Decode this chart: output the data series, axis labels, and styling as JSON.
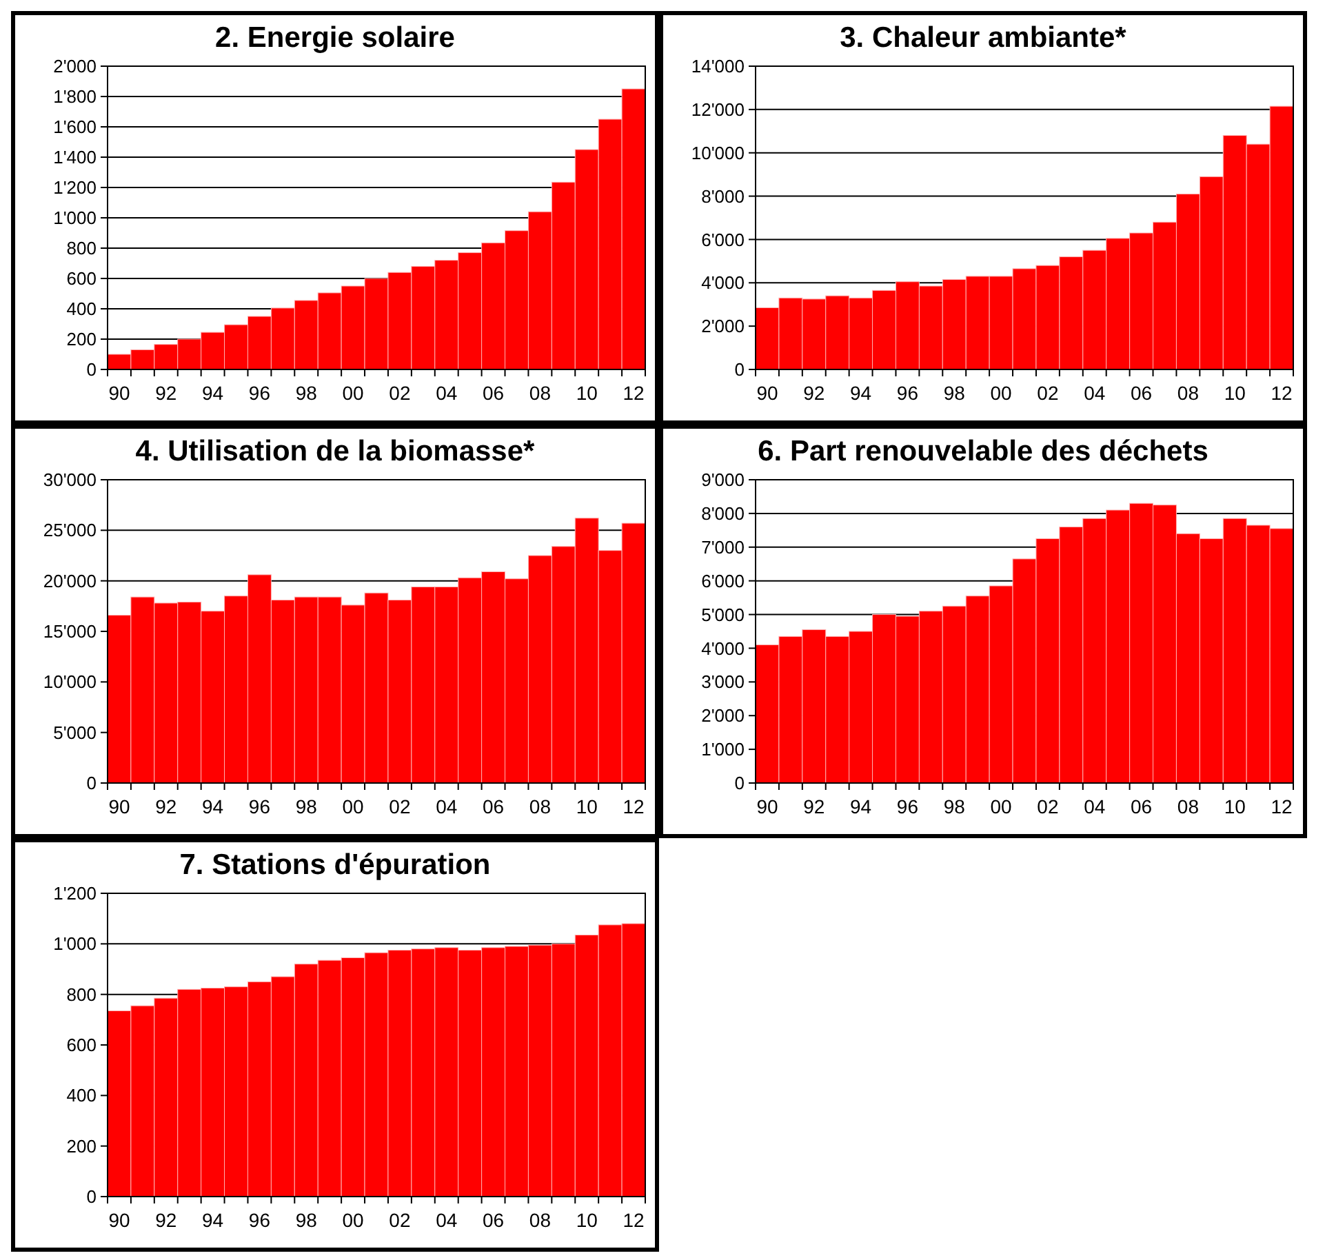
{
  "chart_data": [
    {
      "type": "bar",
      "title": "2. Energie solaire",
      "categories": [
        "90",
        null,
        "92",
        null,
        "94",
        null,
        "96",
        null,
        "98",
        null,
        "00",
        null,
        "02",
        null,
        "04",
        null,
        "06",
        null,
        "08",
        null,
        "10",
        null,
        "12"
      ],
      "values": [
        100,
        130,
        165,
        200,
        245,
        295,
        350,
        405,
        455,
        505,
        550,
        600,
        640,
        680,
        720,
        770,
        835,
        915,
        1040,
        1235,
        1450,
        1650,
        1850
      ],
      "color": "#ff0000",
      "ylim": [
        0,
        2000
      ],
      "yticks": [
        0,
        200,
        400,
        600,
        800,
        {
          "value": 1000,
          "label": "1'000"
        },
        {
          "value": 1200,
          "label": "1'200"
        },
        {
          "value": 1400,
          "label": "1'400"
        },
        {
          "value": 1600,
          "label": "1'600"
        },
        {
          "value": 1800,
          "label": "1'800"
        },
        {
          "value": 2000,
          "label": "2'000"
        }
      ],
      "grid": "y"
    },
    {
      "type": "bar",
      "title": "3. Chaleur ambiante*",
      "categories": [
        "90",
        null,
        "92",
        null,
        "94",
        null,
        "96",
        null,
        "98",
        null,
        "00",
        null,
        "02",
        null,
        "04",
        null,
        "06",
        null,
        "08",
        null,
        "10",
        null,
        "12"
      ],
      "values": [
        2850,
        3300,
        3250,
        3400,
        3300,
        3650,
        4050,
        3850,
        4150,
        4300,
        4300,
        4650,
        4800,
        5200,
        5500,
        6050,
        6300,
        6800,
        8100,
        8900,
        10800,
        10400,
        12150
      ],
      "color": "#ff0000",
      "ylim": [
        0,
        14000
      ],
      "yticks": [
        0,
        {
          "value": 2000,
          "label": "2'000"
        },
        {
          "value": 4000,
          "label": "4'000"
        },
        {
          "value": 6000,
          "label": "6'000"
        },
        {
          "value": 8000,
          "label": "8'000"
        },
        {
          "value": 10000,
          "label": "10'000"
        },
        {
          "value": 12000,
          "label": "12'000"
        },
        {
          "value": 14000,
          "label": "14'000"
        }
      ],
      "grid": "y"
    },
    {
      "type": "bar",
      "title": "4. Utilisation de la biomasse*",
      "categories": [
        "90",
        null,
        "92",
        null,
        "94",
        null,
        "96",
        null,
        "98",
        null,
        "00",
        null,
        "02",
        null,
        "04",
        null,
        "06",
        null,
        "08",
        null,
        "10",
        null,
        "12"
      ],
      "values": [
        16600,
        18400,
        17800,
        17900,
        17000,
        18500,
        20600,
        18100,
        18400,
        18400,
        17600,
        18800,
        18100,
        19400,
        19400,
        20300,
        20900,
        20200,
        22500,
        23400,
        26200,
        23000,
        25700
      ],
      "color": "#ff0000",
      "ylim": [
        0,
        30000
      ],
      "yticks": [
        0,
        {
          "value": 5000,
          "label": "5'000"
        },
        {
          "value": 10000,
          "label": "10'000"
        },
        {
          "value": 15000,
          "label": "15'000"
        },
        {
          "value": 20000,
          "label": "20'000"
        },
        {
          "value": 25000,
          "label": "25'000"
        },
        {
          "value": 30000,
          "label": "30'000"
        }
      ],
      "grid": "y"
    },
    {
      "type": "bar",
      "title": "6. Part renouvelable des déchets",
      "categories": [
        "90",
        null,
        "92",
        null,
        "94",
        null,
        "96",
        null,
        "98",
        null,
        "00",
        null,
        "02",
        null,
        "04",
        null,
        "06",
        null,
        "08",
        null,
        "10",
        null,
        "12"
      ],
      "values": [
        4100,
        4350,
        4550,
        4350,
        4500,
        5000,
        4950,
        5100,
        5250,
        5550,
        5850,
        6650,
        7250,
        7600,
        7850,
        8100,
        8300,
        8250,
        7400,
        7250,
        7850,
        7650,
        7550
      ],
      "color": "#ff0000",
      "ylim": [
        0,
        9000
      ],
      "yticks": [
        0,
        {
          "value": 1000,
          "label": "1'000"
        },
        {
          "value": 2000,
          "label": "2'000"
        },
        {
          "value": 3000,
          "label": "3'000"
        },
        {
          "value": 4000,
          "label": "4'000"
        },
        {
          "value": 5000,
          "label": "5'000"
        },
        {
          "value": 6000,
          "label": "6'000"
        },
        {
          "value": 7000,
          "label": "7'000"
        },
        {
          "value": 8000,
          "label": "8'000"
        },
        {
          "value": 9000,
          "label": "9'000"
        }
      ],
      "grid": "y"
    },
    {
      "type": "bar",
      "title": "7. Stations d'épuration",
      "categories": [
        "90",
        null,
        "92",
        null,
        "94",
        null,
        "96",
        null,
        "98",
        null,
        "00",
        null,
        "02",
        null,
        "04",
        null,
        "06",
        null,
        "08",
        null,
        "10",
        null,
        "12"
      ],
      "values": [
        735,
        755,
        785,
        820,
        825,
        830,
        850,
        870,
        920,
        935,
        945,
        965,
        975,
        980,
        985,
        975,
        985,
        990,
        995,
        1000,
        1035,
        1075,
        1080
      ],
      "color": "#ff0000",
      "ylim": [
        0,
        1200
      ],
      "yticks": [
        0,
        200,
        400,
        600,
        800,
        {
          "value": 1000,
          "label": "1'000"
        },
        {
          "value": 1200,
          "label": "1'200"
        }
      ],
      "grid": "y"
    }
  ]
}
